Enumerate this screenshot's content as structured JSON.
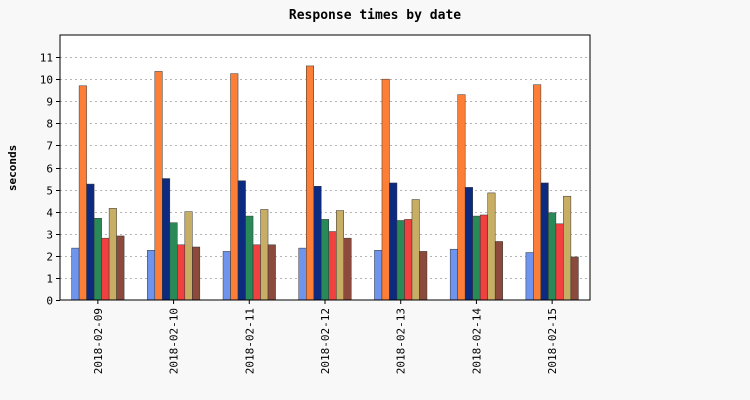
{
  "chart_data": {
    "type": "bar",
    "title": "Response times by date",
    "xlabel": "",
    "ylabel": "seconds",
    "categories": [
      "2018-02-09",
      "2018-02-10",
      "2018-02-11",
      "2018-02-12",
      "2018-02-13",
      "2018-02-14",
      "2018-02-15"
    ],
    "yticks": [
      0,
      1,
      2,
      3,
      4,
      5,
      6,
      7,
      8,
      9,
      10,
      11
    ],
    "ylim": [
      0,
      12
    ],
    "grid": true,
    "series": [
      {
        "color": "#6f94ee",
        "values": [
          2.35,
          2.25,
          2.2,
          2.35,
          2.25,
          2.3,
          2.15
        ]
      },
      {
        "color": "#fd7f37",
        "values": [
          9.7,
          10.35,
          10.25,
          10.6,
          10.0,
          9.3,
          9.75
        ]
      },
      {
        "color": "#0c2a7f",
        "values": [
          5.25,
          5.5,
          5.4,
          5.15,
          5.3,
          5.1,
          5.3
        ]
      },
      {
        "color": "#2a8a57",
        "values": [
          3.7,
          3.5,
          3.8,
          3.65,
          3.6,
          3.8,
          3.95
        ]
      },
      {
        "color": "#f04040",
        "values": [
          2.8,
          2.5,
          2.5,
          3.1,
          3.65,
          3.85,
          3.45
        ]
      },
      {
        "color": "#c8ad65",
        "values": [
          4.15,
          4.0,
          4.1,
          4.05,
          4.55,
          4.85,
          4.7
        ]
      },
      {
        "color": "#8b4a3c",
        "values": [
          2.9,
          2.4,
          2.5,
          2.8,
          2.2,
          2.65,
          1.95
        ]
      }
    ]
  }
}
